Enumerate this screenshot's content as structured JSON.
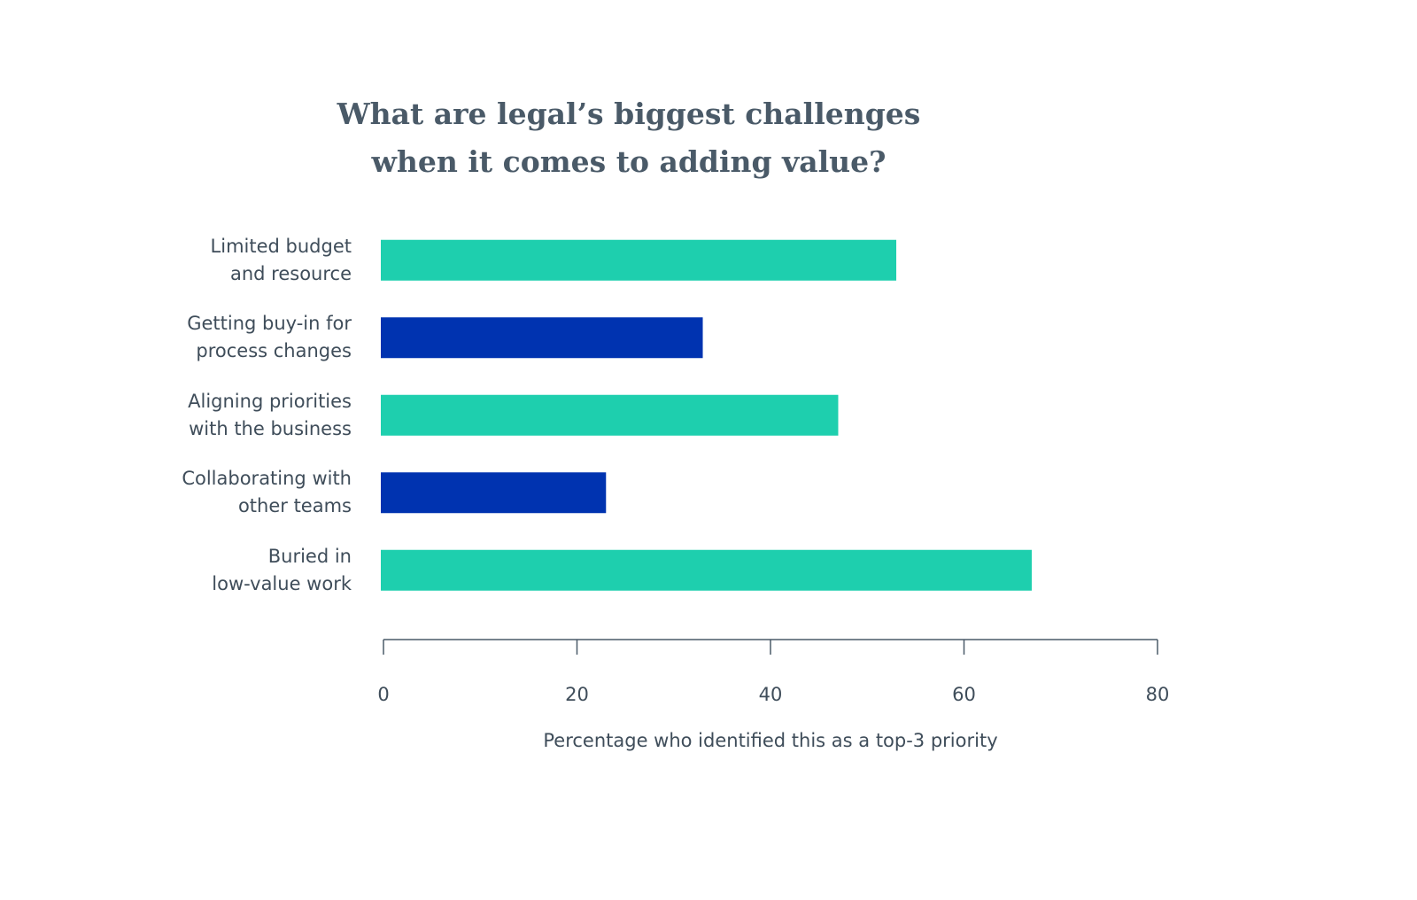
{
  "chart_data": {
    "type": "barh",
    "title": "What are legal’s biggest challenges\nwhen it comes to adding value?",
    "categories": [
      "Limited budget\nand resource",
      "Getting buy-in for\nprocess changes",
      "Aligning priorities\nwith the business",
      "Collaborating with\nother teams",
      "Buried in\nlow-value work"
    ],
    "values": [
      53,
      33,
      47,
      23,
      67
    ],
    "colors": [
      "#1ecfae",
      "#0033b0",
      "#1ecfae",
      "#0033b0",
      "#1ecfae"
    ],
    "xlabel": "Percentage who identified this as a top-3 priority",
    "xlim": [
      0,
      80
    ],
    "xticks": [
      0,
      20,
      40,
      60,
      80
    ]
  }
}
